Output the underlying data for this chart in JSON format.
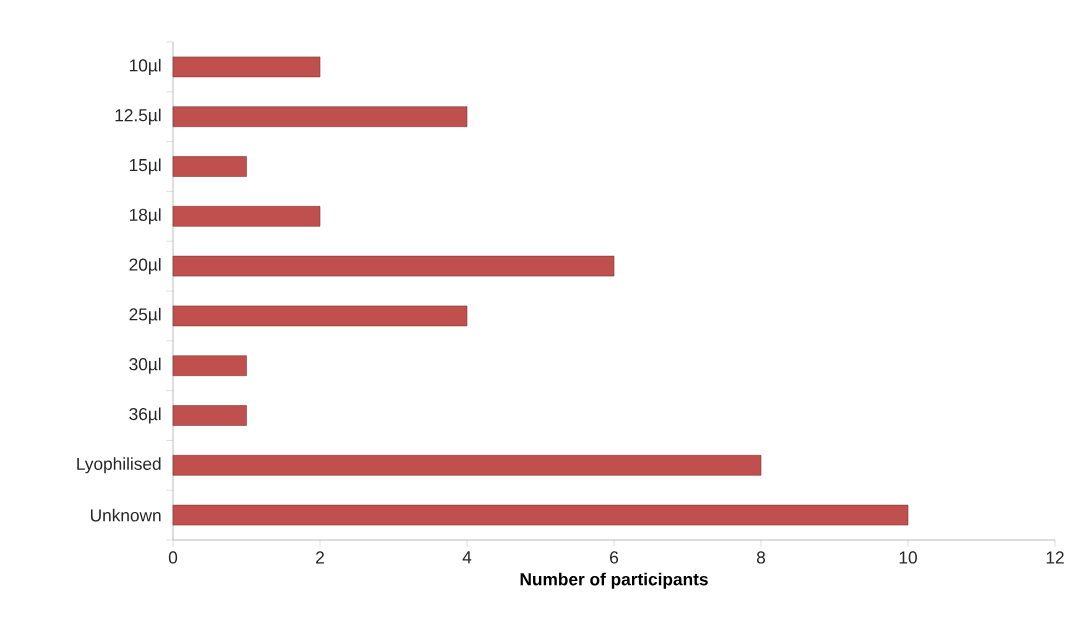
{
  "chart_data": {
    "type": "bar",
    "orientation": "horizontal",
    "xlabel": "Number of participants",
    "categories": [
      "10µl",
      "12.5µl",
      "15µl",
      "18µl",
      "20µl",
      "25µl",
      "30µl",
      "36µl",
      "Lyophilised",
      "Unknown"
    ],
    "values": [
      2,
      4,
      1,
      2,
      6,
      4,
      1,
      1,
      8,
      10
    ],
    "color": "#c0504d",
    "xlim": [
      0,
      12
    ],
    "xticks": [
      0,
      2,
      4,
      6,
      8,
      10,
      12
    ]
  }
}
